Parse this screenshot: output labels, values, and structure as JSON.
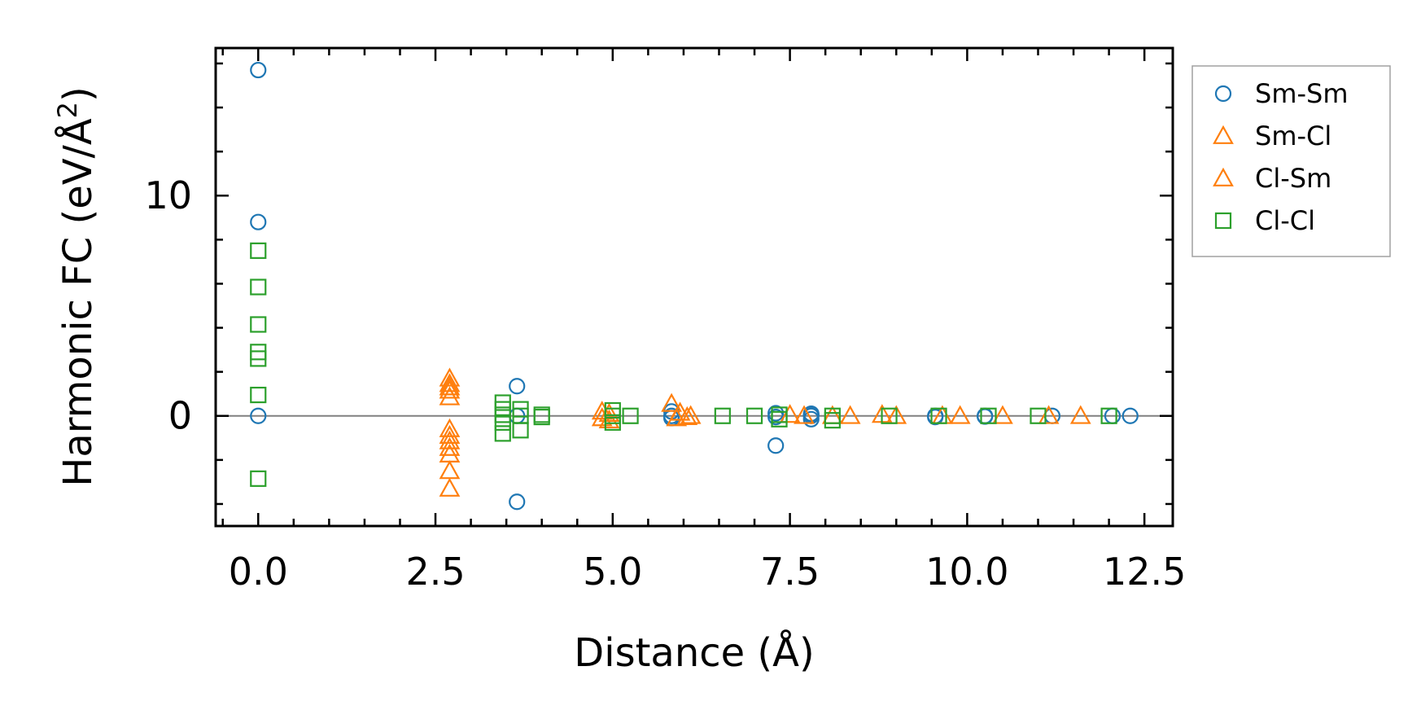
{
  "chart_data": {
    "type": "scatter",
    "title": "",
    "xlabel": "Distance (Å)",
    "ylabel_main": "Harmonic FC (eV/Å",
    "ylabel_sup": "2",
    "ylabel_close": ")",
    "xlim": [
      -0.6,
      12.9
    ],
    "ylim": [
      -5.0,
      16.7
    ],
    "xticks": [
      0.0,
      2.5,
      5.0,
      7.5,
      10.0,
      12.5
    ],
    "xtick_labels": [
      "0.0",
      "2.5",
      "5.0",
      "7.5",
      "10.0",
      "12.5"
    ],
    "xminor_step": 0.5,
    "yticks": [
      0,
      10
    ],
    "ytick_labels": [
      "0",
      "10"
    ],
    "yminor_step": 2,
    "zero_line": true,
    "legend_position": "outside-right-top",
    "series": [
      {
        "name": "Sm-Sm",
        "marker": "circle",
        "color": "#1f77b4",
        "points": [
          [
            0.0,
            15.7
          ],
          [
            0.0,
            8.8
          ],
          [
            0.0,
            0.0
          ],
          [
            3.65,
            1.35
          ],
          [
            3.65,
            -3.9
          ],
          [
            3.65,
            0.0
          ],
          [
            5.83,
            0.2
          ],
          [
            5.83,
            -0.1
          ],
          [
            5.83,
            0.0
          ],
          [
            7.3,
            0.12
          ],
          [
            7.3,
            -1.35
          ],
          [
            7.3,
            -0.05
          ],
          [
            7.8,
            0.1
          ],
          [
            7.8,
            -0.15
          ],
          [
            7.8,
            0.0
          ],
          [
            7.8,
            0.05
          ],
          [
            9.55,
            0.0
          ],
          [
            9.55,
            -0.05
          ],
          [
            10.25,
            0.0
          ],
          [
            10.25,
            -0.03
          ],
          [
            11.2,
            0.0
          ],
          [
            12.05,
            0.0
          ],
          [
            12.3,
            0.0
          ]
        ]
      },
      {
        "name": "Sm-Cl",
        "marker": "triangle",
        "color": "#ff7f0e",
        "points": [
          [
            2.7,
            1.7
          ],
          [
            2.7,
            1.45
          ],
          [
            2.7,
            1.15
          ],
          [
            2.7,
            0.85
          ],
          [
            2.7,
            -0.6
          ],
          [
            2.7,
            -0.9
          ],
          [
            2.7,
            -1.15
          ],
          [
            4.85,
            0.2
          ],
          [
            4.85,
            -0.1
          ],
          [
            5.83,
            0.55
          ],
          [
            5.9,
            -0.1
          ],
          [
            6.1,
            0.0
          ],
          [
            7.5,
            0.05
          ],
          [
            8.1,
            0.0
          ],
          [
            8.8,
            0.05
          ],
          [
            9.65,
            0.0
          ],
          [
            10.5,
            0.0
          ],
          [
            11.6,
            0.0
          ]
        ]
      },
      {
        "name": "Cl-Sm",
        "marker": "triangle",
        "color": "#ff7f0e",
        "points": [
          [
            2.7,
            1.3
          ],
          [
            2.7,
            -1.45
          ],
          [
            2.7,
            -1.75
          ],
          [
            2.7,
            -2.5
          ],
          [
            2.7,
            -3.3
          ],
          [
            4.95,
            0.1
          ],
          [
            4.95,
            -0.2
          ],
          [
            5.95,
            0.15
          ],
          [
            6.05,
            -0.05
          ],
          [
            7.7,
            0.0
          ],
          [
            8.35,
            0.0
          ],
          [
            9.0,
            0.0
          ],
          [
            9.9,
            0.0
          ],
          [
            11.15,
            0.0
          ]
        ]
      },
      {
        "name": "Cl-Cl",
        "marker": "square",
        "color": "#2ca02c",
        "points": [
          [
            0.0,
            7.5
          ],
          [
            0.0,
            5.85
          ],
          [
            0.0,
            4.15
          ],
          [
            0.0,
            2.9
          ],
          [
            0.0,
            2.6
          ],
          [
            0.0,
            0.95
          ],
          [
            0.0,
            -2.85
          ],
          [
            3.45,
            0.6
          ],
          [
            3.45,
            0.3
          ],
          [
            3.45,
            0.05
          ],
          [
            3.45,
            -0.3
          ],
          [
            3.45,
            -0.8
          ],
          [
            3.7,
            0.3
          ],
          [
            3.7,
            0.0
          ],
          [
            3.7,
            -0.65
          ],
          [
            4.0,
            0.05
          ],
          [
            4.0,
            -0.05
          ],
          [
            5.0,
            0.25
          ],
          [
            5.0,
            0.0
          ],
          [
            5.0,
            -0.3
          ],
          [
            5.25,
            0.0
          ],
          [
            6.55,
            0.0
          ],
          [
            7.0,
            0.0
          ],
          [
            7.35,
            0.05
          ],
          [
            7.35,
            -0.15
          ],
          [
            8.1,
            0.0
          ],
          [
            8.1,
            -0.2
          ],
          [
            8.9,
            0.0
          ],
          [
            9.6,
            0.0
          ],
          [
            10.3,
            0.0
          ],
          [
            11.0,
            0.0
          ],
          [
            12.0,
            0.0
          ]
        ]
      }
    ],
    "legend": [
      {
        "label": "Sm-Sm",
        "marker": "circle",
        "color": "#1f77b4"
      },
      {
        "label": "Sm-Cl",
        "marker": "triangle",
        "color": "#ff7f0e"
      },
      {
        "label": "Cl-Sm",
        "marker": "triangle",
        "color": "#ff7f0e"
      },
      {
        "label": "Cl-Cl",
        "marker": "square",
        "color": "#2ca02c"
      }
    ]
  }
}
